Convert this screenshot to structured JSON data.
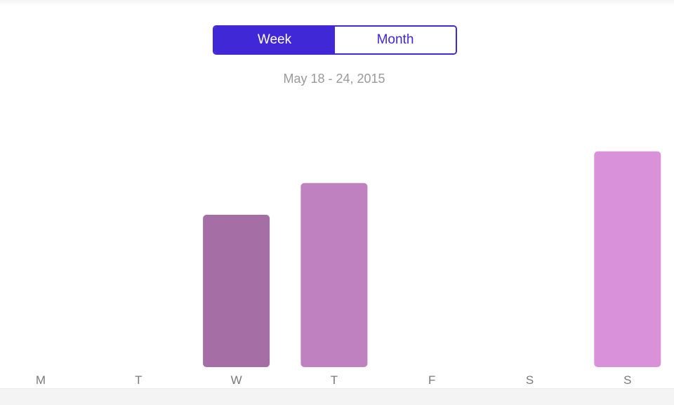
{
  "toggle": {
    "options": [
      "Week",
      "Month"
    ],
    "selected": "Week"
  },
  "date_range": "May 18 - 24, 2015",
  "colors": {
    "accent": "#4128d6",
    "label": "#7a7a7a"
  },
  "chart_data": {
    "type": "bar",
    "categories": [
      "M",
      "T",
      "W",
      "T",
      "F",
      "S",
      "S"
    ],
    "values": [
      0,
      0,
      48,
      58,
      0,
      0,
      68
    ],
    "bar_colors": [
      "#a56fa6",
      "#a56fa6",
      "#a56fa6",
      "#c081c0",
      "#c081c0",
      "#d991d9",
      "#d991d9"
    ],
    "title": "",
    "xlabel": "",
    "ylabel": "",
    "ylim": [
      0,
      100
    ]
  }
}
